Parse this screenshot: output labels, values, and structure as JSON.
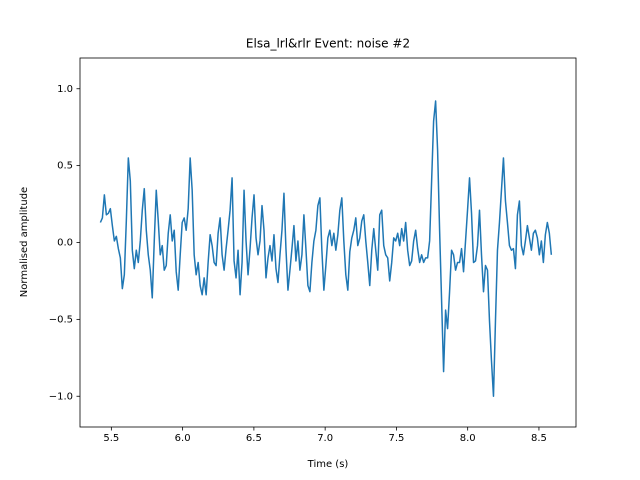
{
  "chart_data": {
    "type": "line",
    "title": "Elsa_lrl&rlr Event: noise #2",
    "x_label": "Time (s)",
    "y_label": "Normalised amplitude",
    "color": "#1f77b4",
    "xlim": [
      5.28,
      8.76
    ],
    "ylim": [
      -1.2,
      1.2
    ],
    "xticks": [
      5.5,
      {
        "value": 6,
        "label": "6.0"
      },
      6.5,
      {
        "value": 7,
        "label": "7.0"
      },
      7.5,
      {
        "value": 8,
        "label": "8.0"
      },
      8.5
    ],
    "yticks": [
      {
        "value": -1,
        "label": "−1.0"
      },
      {
        "value": -0.5,
        "label": "−0.5"
      },
      {
        "value": 0,
        "label": "0.0"
      },
      0.5,
      {
        "value": 1,
        "label": "1.0"
      }
    ],
    "x": [
      5.423,
      5.437,
      5.451,
      5.465,
      5.479,
      5.493,
      5.507,
      5.521,
      5.535,
      5.549,
      5.563,
      5.577,
      5.591,
      5.605,
      5.619,
      5.633,
      5.647,
      5.661,
      5.675,
      5.689,
      5.703,
      5.717,
      5.731,
      5.745,
      5.759,
      5.773,
      5.787,
      5.801,
      5.815,
      5.829,
      5.843,
      5.857,
      5.871,
      5.885,
      5.899,
      5.913,
      5.927,
      5.941,
      5.955,
      5.969,
      5.983,
      5.997,
      6.011,
      6.025,
      6.039,
      6.053,
      6.067,
      6.081,
      6.095,
      6.109,
      6.123,
      6.137,
      6.151,
      6.165,
      6.179,
      6.193,
      6.207,
      6.221,
      6.235,
      6.249,
      6.263,
      6.277,
      6.291,
      6.305,
      6.319,
      6.333,
      6.347,
      6.361,
      6.375,
      6.389,
      6.403,
      6.417,
      6.431,
      6.445,
      6.459,
      6.473,
      6.487,
      6.501,
      6.515,
      6.529,
      6.543,
      6.557,
      6.571,
      6.585,
      6.599,
      6.613,
      6.627,
      6.641,
      6.655,
      6.669,
      6.683,
      6.697,
      6.711,
      6.725,
      6.739,
      6.753,
      6.767,
      6.781,
      6.795,
      6.809,
      6.823,
      6.837,
      6.851,
      6.865,
      6.879,
      6.893,
      6.907,
      6.921,
      6.935,
      6.949,
      6.963,
      6.977,
      6.991,
      7.005,
      7.019,
      7.033,
      7.047,
      7.061,
      7.075,
      7.089,
      7.103,
      7.117,
      7.131,
      7.145,
      7.159,
      7.173,
      7.187,
      7.201,
      7.215,
      7.229,
      7.243,
      7.257,
      7.271,
      7.285,
      7.299,
      7.313,
      7.327,
      7.341,
      7.355,
      7.369,
      7.383,
      7.397,
      7.411,
      7.425,
      7.439,
      7.453,
      7.467,
      7.481,
      7.495,
      7.509,
      7.523,
      7.537,
      7.551,
      7.565,
      7.579,
      7.593,
      7.607,
      7.621,
      7.635,
      7.649,
      7.663,
      7.677,
      7.691,
      7.705,
      7.719,
      7.733,
      7.747,
      7.761,
      7.775,
      7.789,
      7.803,
      7.817,
      7.831,
      7.845,
      7.859,
      7.873,
      7.887,
      7.901,
      7.915,
      7.929,
      7.943,
      7.957,
      7.971,
      7.985,
      7.999,
      8.013,
      8.027,
      8.041,
      8.055,
      8.069,
      8.083,
      8.097,
      8.111,
      8.125,
      8.139,
      8.153,
      8.167,
      8.181,
      8.195,
      8.209,
      8.223,
      8.237,
      8.251,
      8.265,
      8.279,
      8.293,
      8.307,
      8.321,
      8.335,
      8.349,
      8.363,
      8.377,
      8.391,
      8.405,
      8.419,
      8.433,
      8.447,
      8.461,
      8.475,
      8.489,
      8.503,
      8.517,
      8.531,
      8.545,
      8.559,
      8.573,
      8.587
    ],
    "values": [
      0.13,
      0.16,
      0.31,
      0.18,
      0.19,
      0.22,
      0.11,
      0.01,
      0.04,
      -0.04,
      -0.1,
      -0.3,
      -0.21,
      0.14,
      0.55,
      0.4,
      -0.05,
      -0.17,
      -0.05,
      -0.13,
      0.01,
      0.21,
      0.35,
      0.08,
      -0.08,
      -0.18,
      -0.36,
      0.01,
      0.34,
      0.14,
      -0.08,
      -0.02,
      -0.18,
      -0.15,
      0.06,
      0.18,
      0.01,
      0.08,
      -0.19,
      -0.31,
      -0.08,
      0.13,
      0.16,
      0.08,
      0.22,
      0.55,
      0.34,
      -0.08,
      -0.21,
      -0.13,
      -0.28,
      -0.34,
      -0.23,
      -0.34,
      -0.13,
      0.05,
      -0.02,
      -0.13,
      -0.15,
      0.06,
      0.16,
      -0.08,
      -0.18,
      -0.04,
      0.08,
      0.21,
      0.42,
      -0.12,
      -0.23,
      -0.05,
      -0.34,
      -0.13,
      0.34,
      0.01,
      -0.21,
      -0.04,
      0.16,
      0.31,
      0.03,
      -0.08,
      0.01,
      0.24,
      0.08,
      -0.23,
      -0.1,
      -0.02,
      -0.12,
      0.05,
      -0.17,
      -0.26,
      -0.08,
      0.08,
      0.32,
      -0.04,
      -0.31,
      -0.18,
      -0.04,
      0.11,
      -0.12,
      0.01,
      -0.18,
      -0.08,
      0.18,
      -0.04,
      -0.28,
      -0.32,
      -0.13,
      0.01,
      0.08,
      0.24,
      0.29,
      -0.05,
      -0.31,
      -0.15,
      0.03,
      0.08,
      -0.02,
      0.06,
      -0.05,
      0.05,
      0.21,
      0.29,
      0.01,
      -0.21,
      -0.31,
      -0.06,
      0.03,
      0.08,
      0.16,
      -0.02,
      0.03,
      0.14,
      0.18,
      0.01,
      -0.13,
      -0.28,
      -0.05,
      0.09,
      -0.05,
      -0.18,
      0.18,
      0.21,
      -0.02,
      -0.08,
      -0.1,
      -0.25,
      -0.13,
      0.03,
      0.01,
      0.06,
      -0.02,
      0.09,
      0.01,
      0.13,
      -0.05,
      -0.15,
      -0.12,
      0.01,
      0.08,
      -0.04,
      -0.13,
      -0.08,
      -0.13,
      -0.1,
      -0.1,
      0.01,
      0.4,
      0.79,
      0.92,
      0.6,
      0.08,
      -0.38,
      -0.84,
      -0.44,
      -0.56,
      -0.32,
      -0.05,
      -0.08,
      -0.18,
      -0.13,
      -0.13,
      -0.04,
      -0.19,
      0.01,
      0.21,
      0.42,
      0.19,
      -0.13,
      -0.12,
      -0.02,
      0.21,
      -0.08,
      -0.32,
      -0.15,
      -0.18,
      -0.51,
      -0.77,
      -1.0,
      -0.51,
      -0.05,
      0.13,
      0.34,
      0.55,
      0.27,
      0.13,
      -0.02,
      -0.05,
      -0.04,
      -0.17,
      0.18,
      0.27,
      -0.02,
      -0.08,
      0.01,
      0.11,
      0.03,
      -0.05,
      0.06,
      0.08,
      0.03,
      -0.08,
      0.01,
      -0.13,
      0.05,
      0.13,
      0.06,
      -0.08
    ]
  }
}
